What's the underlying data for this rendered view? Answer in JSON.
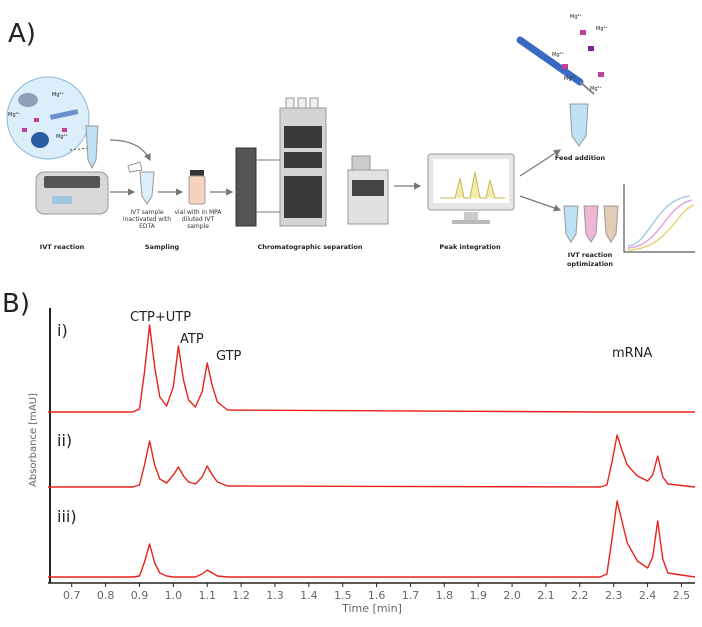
{
  "panel_a": {
    "label": "A)",
    "steps": {
      "ivt_reaction": "IVT reaction",
      "inactivated": [
        "IVT sample",
        "inactivated with",
        "EDTA"
      ],
      "sampling": "Sampling",
      "vial": [
        "vial with in MPA",
        "diluted IVT",
        "sample"
      ],
      "chromatography": "Chromatographic separation",
      "peak_integration": "Peak integration",
      "feed_addition": "Feed addition",
      "optimization": [
        "IVT reaction",
        "optimization"
      ]
    },
    "ion": "Mg²⁺"
  },
  "panel_b": {
    "label": "B)"
  },
  "chart_data": {
    "type": "line",
    "x_label": "Time [min]",
    "y_label": "Absorbance [mAU]",
    "panel_labels": [
      "i)",
      "ii)",
      "iii)"
    ],
    "annotations": [
      "CTP+UTP",
      "ATP",
      "GTP",
      "mRNA"
    ],
    "x": [
      0.63,
      0.88,
      0.9,
      0.915,
      0.93,
      0.945,
      0.96,
      0.98,
      1.0,
      1.015,
      1.03,
      1.045,
      1.065,
      1.085,
      1.1,
      1.115,
      1.13,
      1.16,
      2.26,
      2.28,
      2.295,
      2.31,
      2.325,
      2.34,
      2.37,
      2.4,
      2.415,
      2.43,
      2.445,
      2.46,
      2.54
    ],
    "series": [
      {
        "color": "#e8221b",
        "values": [
          0,
          0,
          3,
          40,
          87,
          45,
          15,
          6,
          25,
          66,
          32,
          12,
          5,
          20,
          49,
          26,
          10,
          2,
          0,
          0,
          0,
          0,
          0,
          0,
          0,
          0,
          0,
          0,
          0,
          0,
          0
        ]
      },
      {
        "color": "#e8221b",
        "values": [
          0,
          0,
          2,
          22,
          46,
          22,
          8,
          4,
          12,
          20,
          11,
          5,
          3,
          10,
          21,
          12,
          5,
          1,
          0,
          2,
          25,
          52,
          36,
          22,
          11,
          6,
          12,
          31,
          10,
          3,
          0
        ]
      },
      {
        "color": "#e8221b",
        "values": [
          0,
          0,
          1,
          15,
          33,
          14,
          4,
          1,
          0,
          0,
          0,
          0,
          0,
          3,
          7,
          4,
          1,
          0,
          0,
          3,
          38,
          76,
          55,
          34,
          16,
          9,
          20,
          56,
          18,
          4,
          0
        ]
      }
    ],
    "xlim": [
      0.63,
      2.54
    ],
    "ylim": [
      0,
      100
    ],
    "xticks": [
      0.7,
      0.8,
      0.9,
      {
        "value": 1,
        "label": "1.0"
      },
      1.1,
      1.2,
      1.3,
      1.4,
      1.5,
      1.6,
      1.7,
      1.8,
      1.9,
      {
        "value": 2,
        "label": "2.0"
      },
      2.1,
      2.2,
      2.3,
      2.4,
      2.5
    ]
  }
}
